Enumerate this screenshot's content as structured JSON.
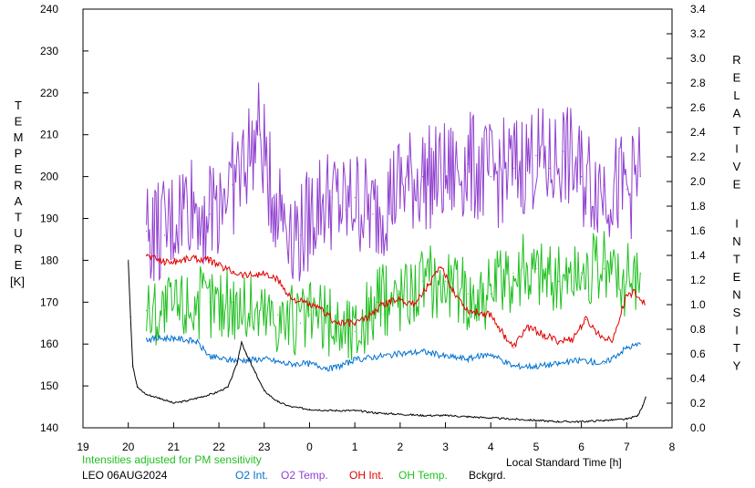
{
  "chart_data": {
    "type": "line",
    "left_axis": {
      "label": "TEMPERATURE",
      "unit": "[K]",
      "ylim": [
        140,
        240
      ],
      "ticks": [
        "140",
        "150",
        "160",
        "170",
        "180",
        "190",
        "200",
        "210",
        "220",
        "230",
        "240"
      ]
    },
    "right_axis": {
      "label": "RELATIVE INTENSITY",
      "ylim": [
        0,
        3.4
      ],
      "ticks": [
        "0.0",
        "0.2",
        "0.4",
        "0.6",
        "0.8",
        "1.0",
        "1.2",
        "1.4",
        "1.6",
        "1.8",
        "2.0",
        "2.2",
        "2.4",
        "2.6",
        "2.8",
        "3.0",
        "3.2",
        "3.4"
      ]
    },
    "x_axis": {
      "label": "Local Standard Time [h]",
      "ticks": [
        "19",
        "20",
        "21",
        "22",
        "23",
        "0",
        "1",
        "2",
        "3",
        "4",
        "5",
        "6",
        "7",
        "8"
      ],
      "xlim_hours_elapsed_from_19": [
        0,
        13
      ]
    },
    "note": "Intensities adjusted for PM sensitivity",
    "station": "LEO 06AUG2024",
    "grid": false,
    "series": [
      {
        "name": "O2 Int.",
        "color": "#0070d0",
        "axis": "right",
        "style": "line",
        "x": [
          20.4,
          21.0,
          21.5,
          21.8,
          22.2,
          22.6,
          23.0,
          23.5,
          0.0,
          0.5,
          1.0,
          1.5,
          2.0,
          2.5,
          3.0,
          3.5,
          4.0,
          4.5,
          5.0,
          5.5,
          6.0,
          6.5,
          7.0,
          7.3
        ],
        "y": [
          0.72,
          0.73,
          0.7,
          0.58,
          0.55,
          0.55,
          0.56,
          0.52,
          0.52,
          0.48,
          0.55,
          0.58,
          0.6,
          0.62,
          0.58,
          0.56,
          0.6,
          0.5,
          0.5,
          0.52,
          0.55,
          0.52,
          0.65,
          0.68
        ]
      },
      {
        "name": "O2 Temp.",
        "color": "#9040d0",
        "axis": "left",
        "style": "spiky",
        "x": [
          20.4,
          20.8,
          21.3,
          21.8,
          22.1,
          22.3,
          22.9,
          23.2,
          23.8,
          0.2,
          0.5,
          0.8,
          1.0,
          1.4,
          2.0,
          2.5,
          3.0,
          3.5,
          4.0,
          4.5,
          5.0,
          5.3,
          5.6,
          6.0,
          6.5,
          7.0,
          7.3
        ],
        "y": [
          187,
          186,
          194,
          191,
          197,
          198,
          210,
          195,
          186,
          194,
          195,
          192,
          195,
          191,
          198,
          200,
          200,
          203,
          200,
          202,
          205,
          202,
          206,
          200,
          198,
          197,
          200
        ]
      },
      {
        "name": "OH Int.",
        "color": "#e00000",
        "axis": "right",
        "style": "line",
        "x": [
          20.4,
          20.8,
          21.0,
          21.4,
          21.8,
          22.0,
          22.3,
          22.6,
          23.0,
          23.3,
          23.6,
          0.0,
          0.3,
          0.6,
          1.0,
          1.3,
          1.6,
          2.0,
          2.3,
          2.6,
          2.9,
          3.2,
          3.5,
          4.0,
          4.3,
          4.5,
          4.8,
          5.2,
          5.5,
          5.8,
          6.1,
          6.4,
          6.7,
          7.0,
          7.2,
          7.4
        ],
        "y": [
          1.4,
          1.35,
          1.35,
          1.38,
          1.36,
          1.32,
          1.27,
          1.24,
          1.25,
          1.2,
          1.05,
          1.0,
          0.95,
          0.85,
          0.85,
          0.9,
          1.0,
          1.05,
          1.0,
          1.15,
          1.3,
          1.1,
          0.95,
          0.92,
          0.75,
          0.65,
          0.82,
          0.75,
          0.7,
          0.72,
          0.88,
          0.75,
          0.72,
          1.08,
          1.1,
          1.0
        ]
      },
      {
        "name": "OH Temp.",
        "color": "#20c020",
        "axis": "left",
        "style": "spiky",
        "x": [
          20.4,
          20.8,
          21.3,
          21.8,
          22.3,
          22.8,
          23.3,
          23.8,
          0.0,
          0.5,
          1.0,
          1.5,
          2.0,
          2.5,
          3.0,
          3.5,
          4.0,
          4.5,
          5.0,
          5.5,
          6.0,
          6.5,
          7.0,
          7.3
        ],
        "y": [
          168,
          168,
          170,
          170,
          170,
          168,
          167,
          165,
          167,
          165,
          163,
          170,
          172,
          175,
          175,
          172,
          172,
          177,
          178,
          175,
          177,
          178,
          175,
          177
        ]
      },
      {
        "name": "Bckgrd.",
        "color": "#000000",
        "axis": "right",
        "style": "line",
        "x": [
          20.0,
          20.05,
          20.1,
          20.2,
          20.4,
          20.7,
          21.0,
          21.3,
          21.6,
          21.9,
          22.2,
          22.4,
          22.5,
          22.6,
          22.8,
          23.0,
          23.3,
          23.6,
          0.0,
          0.5,
          1.0,
          1.5,
          2.0,
          2.5,
          3.0,
          3.5,
          4.0,
          4.5,
          5.0,
          5.5,
          6.0,
          6.5,
          7.0,
          7.25,
          7.35,
          7.42
        ],
        "y": [
          1.36,
          0.9,
          0.5,
          0.33,
          0.27,
          0.24,
          0.2,
          0.22,
          0.25,
          0.28,
          0.33,
          0.52,
          0.7,
          0.6,
          0.45,
          0.3,
          0.21,
          0.17,
          0.15,
          0.14,
          0.14,
          0.12,
          0.11,
          0.1,
          0.1,
          0.09,
          0.08,
          0.07,
          0.06,
          0.05,
          0.05,
          0.06,
          0.07,
          0.1,
          0.18,
          0.25
        ]
      }
    ]
  }
}
